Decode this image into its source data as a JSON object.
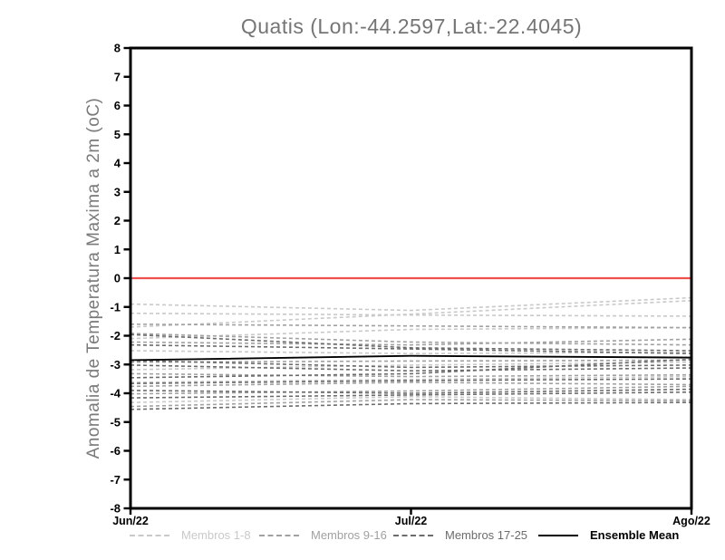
{
  "title": "Quatis (Lon:-44.2597,Lat:-22.4045)",
  "chart_data": {
    "type": "line",
    "title": "Quatis (Lon:-44.2597,Lat:-22.4045)",
    "ylabel": "Anomalia de Temperatura Maxima a 2m (oC)",
    "xlabel": "",
    "x_categories": [
      "Jun/22",
      "Jul/22",
      "Ago/22"
    ],
    "ylim": [
      -8,
      8
    ],
    "ytick_step": 1,
    "grid": false,
    "legend_position": "bottom",
    "title_color": "#757575",
    "axis_color": "#000000",
    "zero_line": {
      "value": 0,
      "color": "#f0504c"
    },
    "groups": [
      {
        "name": "Membros 1-8",
        "color": "#c9c9c9",
        "dashed": true
      },
      {
        "name": "Membros 9-16",
        "color": "#a1a1a1",
        "dashed": true
      },
      {
        "name": "Membros 17-25",
        "color": "#6c6c6c",
        "dashed": true
      },
      {
        "name": "Ensemble Mean",
        "color": "#000000",
        "dashed": false
      }
    ],
    "series": [
      {
        "name": "Membro 1",
        "group": 0,
        "values": [
          -0.9,
          -1.12,
          -0.68
        ]
      },
      {
        "name": "Membro 2",
        "group": 0,
        "values": [
          -1.22,
          -1.28,
          -1.32
        ]
      },
      {
        "name": "Membro 3",
        "group": 0,
        "values": [
          -1.7,
          -1.25,
          -0.78
        ]
      },
      {
        "name": "Membro 4",
        "group": 0,
        "values": [
          -2.1,
          -1.78,
          -1.72
        ]
      },
      {
        "name": "Membro 5",
        "group": 0,
        "values": [
          -2.52,
          -2.62,
          -2.58
        ]
      },
      {
        "name": "Membro 6",
        "group": 0,
        "values": [
          -3.18,
          -3.02,
          -2.92
        ]
      },
      {
        "name": "Membro 7",
        "group": 0,
        "values": [
          -3.62,
          -3.52,
          -3.42
        ]
      },
      {
        "name": "Membro 8",
        "group": 0,
        "values": [
          -4.32,
          -4.12,
          -4.22
        ]
      },
      {
        "name": "Membro 9",
        "group": 1,
        "values": [
          -1.6,
          -1.66,
          -1.72
        ]
      },
      {
        "name": "Membro 10",
        "group": 1,
        "values": [
          -1.92,
          -2.22,
          -2.32
        ]
      },
      {
        "name": "Membro 11",
        "group": 1,
        "values": [
          -2.22,
          -2.32,
          -2.12
        ]
      },
      {
        "name": "Membro 12",
        "group": 1,
        "values": [
          -2.92,
          -2.88,
          -2.85
        ]
      },
      {
        "name": "Membro 13",
        "group": 1,
        "values": [
          -3.32,
          -3.42,
          -3.36
        ]
      },
      {
        "name": "Membro 14",
        "group": 1,
        "values": [
          -3.76,
          -3.62,
          -3.7
        ]
      },
      {
        "name": "Membro 15",
        "group": 1,
        "values": [
          -4.02,
          -3.92,
          -3.76
        ]
      },
      {
        "name": "Membro 16",
        "group": 1,
        "values": [
          -4.46,
          -4.22,
          -4.26
        ]
      },
      {
        "name": "Membro 17",
        "group": 2,
        "values": [
          -1.96,
          -2.42,
          -2.52
        ]
      },
      {
        "name": "Membro 18",
        "group": 2,
        "values": [
          -2.32,
          -2.46,
          -2.62
        ]
      },
      {
        "name": "Membro 19",
        "group": 2,
        "values": [
          -2.86,
          -3.1,
          -3.02
        ]
      },
      {
        "name": "Membro 20",
        "group": 2,
        "values": [
          -3.02,
          -3.22,
          -3.12
        ]
      },
      {
        "name": "Membro 21",
        "group": 2,
        "values": [
          -3.66,
          -3.56,
          -3.5
        ]
      },
      {
        "name": "Membro 22",
        "group": 2,
        "values": [
          -3.9,
          -4.0,
          -3.86
        ]
      },
      {
        "name": "Membro 23",
        "group": 2,
        "values": [
          -4.16,
          -4.06,
          -3.96
        ]
      },
      {
        "name": "Membro 24",
        "group": 2,
        "values": [
          -4.56,
          -4.36,
          -4.32
        ]
      },
      {
        "name": "Membro 25",
        "group": 2,
        "values": [
          -3.46,
          -3.32,
          -2.82
        ]
      },
      {
        "name": "Ensemble Mean",
        "group": 3,
        "values": [
          -2.85,
          -2.7,
          -2.76
        ]
      }
    ]
  }
}
